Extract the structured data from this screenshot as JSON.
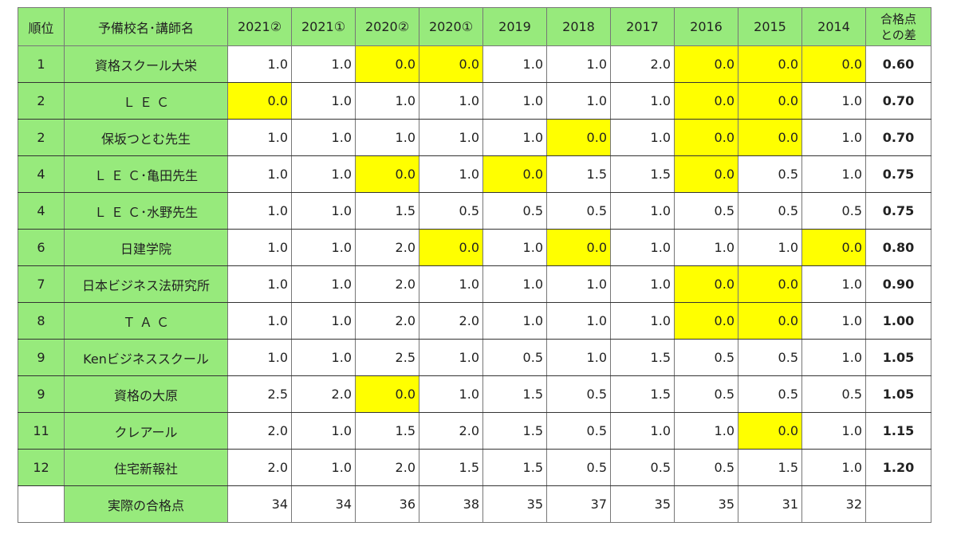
{
  "table": {
    "headers": [
      "順位",
      "予備校名･講師名",
      "2021②",
      "2021①",
      "2020②",
      "2020①",
      "2019",
      "2018",
      "2017",
      "2016",
      "2015",
      "2014",
      "合格点\nとの差"
    ],
    "rows": [
      {
        "rank": "1",
        "name": "資格スクール大栄",
        "scores": [
          "1.0",
          "1.0",
          "0.0",
          "0.0",
          "1.0",
          "1.0",
          "2.0",
          "0.0",
          "0.0",
          "0.0"
        ],
        "diff": "0.60"
      },
      {
        "rank": "2",
        "name": "Ｌ Ｅ Ｃ",
        "scores": [
          "0.0",
          "1.0",
          "1.0",
          "1.0",
          "1.0",
          "1.0",
          "1.0",
          "0.0",
          "0.0",
          "1.0"
        ],
        "diff": "0.70"
      },
      {
        "rank": "2",
        "name": "保坂つとむ先生",
        "scores": [
          "1.0",
          "1.0",
          "1.0",
          "1.0",
          "1.0",
          "0.0",
          "1.0",
          "0.0",
          "0.0",
          "1.0"
        ],
        "diff": "0.70"
      },
      {
        "rank": "4",
        "name": "Ｌ Ｅ Ｃ･亀田先生",
        "scores": [
          "1.0",
          "1.0",
          "0.0",
          "1.0",
          "0.0",
          "1.5",
          "1.5",
          "0.0",
          "0.5",
          "1.0"
        ],
        "diff": "0.75"
      },
      {
        "rank": "4",
        "name": "Ｌ Ｅ Ｃ･水野先生",
        "scores": [
          "1.0",
          "1.0",
          "1.5",
          "0.5",
          "0.5",
          "0.5",
          "1.0",
          "0.5",
          "0.5",
          "0.5"
        ],
        "diff": "0.75"
      },
      {
        "rank": "6",
        "name": "日建学院",
        "scores": [
          "1.0",
          "1.0",
          "2.0",
          "0.0",
          "1.0",
          "0.0",
          "1.0",
          "1.0",
          "1.0",
          "0.0"
        ],
        "diff": "0.80"
      },
      {
        "rank": "7",
        "name": "日本ビジネス法研究所",
        "scores": [
          "1.0",
          "1.0",
          "2.0",
          "1.0",
          "1.0",
          "1.0",
          "1.0",
          "0.0",
          "0.0",
          "1.0"
        ],
        "diff": "0.90"
      },
      {
        "rank": "8",
        "name": "Ｔ Ａ Ｃ",
        "scores": [
          "1.0",
          "1.0",
          "2.0",
          "2.0",
          "1.0",
          "1.0",
          "1.0",
          "0.0",
          "0.0",
          "1.0"
        ],
        "diff": "1.00"
      },
      {
        "rank": "9",
        "name": "Kenビジネススクール",
        "scores": [
          "1.0",
          "1.0",
          "2.5",
          "1.0",
          "0.5",
          "1.0",
          "1.5",
          "0.5",
          "0.5",
          "1.0"
        ],
        "diff": "1.05"
      },
      {
        "rank": "9",
        "name": "資格の大原",
        "scores": [
          "2.5",
          "2.0",
          "0.0",
          "1.0",
          "1.5",
          "0.5",
          "1.5",
          "0.5",
          "0.5",
          "0.5"
        ],
        "diff": "1.05"
      },
      {
        "rank": "11",
        "name": "クレアール",
        "scores": [
          "2.0",
          "1.0",
          "1.5",
          "2.0",
          "1.5",
          "0.5",
          "1.0",
          "1.0",
          "0.0",
          "1.0"
        ],
        "diff": "1.15"
      },
      {
        "rank": "12",
        "name": "住宅新報社",
        "scores": [
          "2.0",
          "1.0",
          "2.0",
          "1.5",
          "1.5",
          "0.5",
          "0.5",
          "0.5",
          "1.5",
          "1.0"
        ],
        "diff": "1.20"
      }
    ],
    "footer": {
      "label": "実際の合格点",
      "values": [
        "34",
        "34",
        "36",
        "38",
        "35",
        "37",
        "35",
        "35",
        "31",
        "32"
      ]
    }
  }
}
